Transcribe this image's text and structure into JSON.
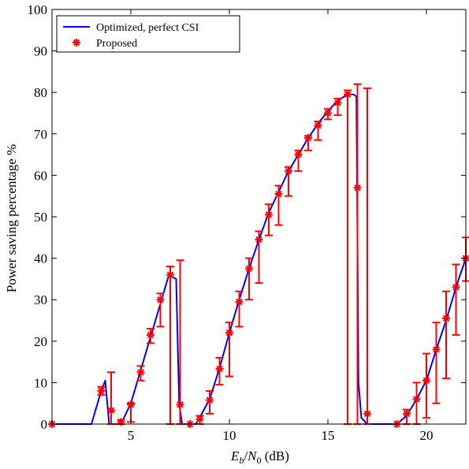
{
  "chart_data": {
    "type": "line",
    "xlabel": "E_b/N_0 (dB)",
    "xlabel_parts": {
      "e": "E",
      "b": "b",
      "slash": "/",
      "n": "N",
      "zero": "0",
      "unit": " (dB)"
    },
    "ylabel": "Power saving percentage %",
    "xlim": [
      1,
      22
    ],
    "ylim": [
      0,
      100
    ],
    "xticks": [
      5,
      10,
      15,
      20
    ],
    "yticks": [
      0,
      10,
      20,
      30,
      40,
      50,
      60,
      70,
      80,
      90,
      100
    ],
    "grid": false,
    "legend_position": "top-left",
    "colors": {
      "optimized": "#0000ff",
      "proposed": "#ff0000"
    },
    "series": [
      {
        "name": "Optimized, perfect CSI",
        "style": "line",
        "x": [
          1,
          3,
          3.5,
          3.7,
          3.9,
          4.5,
          5,
          5.5,
          6,
          6.5,
          6.9,
          7.1,
          7.3,
          7.45,
          7.6,
          8.3,
          8.6,
          9,
          9.5,
          10,
          10.5,
          11,
          11.5,
          12,
          12.5,
          13,
          13.5,
          14,
          14.5,
          15,
          15.5,
          16,
          16.3,
          16.45,
          16.55,
          16.7,
          17,
          18.5,
          19,
          19.5,
          20,
          20.5,
          21,
          21.5,
          22
        ],
        "y": [
          0,
          0,
          8,
          10.5,
          0,
          0,
          5,
          13,
          21,
          29,
          35.5,
          35.5,
          35,
          5,
          0,
          0,
          2.5,
          6,
          13.5,
          22,
          30,
          37.5,
          44.5,
          51,
          56,
          61,
          65,
          69,
          72.5,
          75.5,
          78,
          79.5,
          79.5,
          79,
          10,
          1.5,
          0,
          0,
          2,
          6,
          10.5,
          18,
          25,
          33,
          40
        ]
      },
      {
        "name": "Proposed",
        "style": "marker",
        "points": [
          {
            "x": 1,
            "y": 0
          },
          {
            "x": 3.5,
            "y": 8,
            "err": [
              7,
              9
            ]
          },
          {
            "x": 4,
            "y": 3.3,
            "err": [
              0,
              12.5
            ]
          },
          {
            "x": 4.5,
            "y": 0.5,
            "err": [
              0,
              1
            ]
          },
          {
            "x": 5,
            "y": 4.7,
            "err": [
              0.5,
              5
            ]
          },
          {
            "x": 5.5,
            "y": 12.5,
            "err": [
              10.5,
              14
            ]
          },
          {
            "x": 6,
            "y": 21.5,
            "err": [
              19.5,
              23
            ]
          },
          {
            "x": 6.5,
            "y": 30,
            "err": [
              23.5,
              31.5
            ]
          },
          {
            "x": 7,
            "y": 36,
            "err": [
              0,
              38
            ]
          },
          {
            "x": 7.5,
            "y": 4.7,
            "err": [
              0,
              39.5
            ]
          },
          {
            "x": 8,
            "y": 0
          },
          {
            "x": 8.5,
            "y": 1.2,
            "err": [
              0,
              2
            ]
          },
          {
            "x": 9,
            "y": 5.8,
            "err": [
              2.5,
              8
            ]
          },
          {
            "x": 9.5,
            "y": 13.3,
            "err": [
              9.5,
              16
            ]
          },
          {
            "x": 10,
            "y": 22,
            "err": [
              11.5,
              24.5
            ]
          },
          {
            "x": 10.5,
            "y": 29.5,
            "err": [
              23.5,
              32
            ]
          },
          {
            "x": 11,
            "y": 37.5,
            "err": [
              30,
              40
            ]
          },
          {
            "x": 11.5,
            "y": 44.5,
            "err": [
              34,
              46.5
            ]
          },
          {
            "x": 12,
            "y": 50.5,
            "err": [
              45.5,
              53
            ]
          },
          {
            "x": 12.5,
            "y": 55.5,
            "err": [
              48,
              57.5
            ]
          },
          {
            "x": 13,
            "y": 61,
            "err": [
              55,
              62
            ]
          },
          {
            "x": 13.5,
            "y": 65,
            "err": [
              61,
              66
            ]
          },
          {
            "x": 14,
            "y": 69,
            "err": [
              66,
              69.5
            ]
          },
          {
            "x": 14.5,
            "y": 72,
            "err": [
              68.5,
              73
            ]
          },
          {
            "x": 15,
            "y": 75,
            "err": [
              73.5,
              76
            ]
          },
          {
            "x": 15.5,
            "y": 77.5,
            "err": [
              74.5,
              78.5
            ]
          },
          {
            "x": 16,
            "y": 79.5,
            "err": [
              0,
              80.5
            ]
          },
          {
            "x": 16.5,
            "y": 57,
            "err": [
              0,
              82
            ]
          },
          {
            "x": 17,
            "y": 2.5,
            "err": [
              0,
              81
            ]
          },
          {
            "x": 18.5,
            "y": 0
          },
          {
            "x": 19,
            "y": 2.5,
            "err": [
              0,
              3.5
            ]
          },
          {
            "x": 19.5,
            "y": 6,
            "err": [
              0,
              10
            ]
          },
          {
            "x": 20,
            "y": 10.5,
            "err": [
              1.5,
              17
            ]
          },
          {
            "x": 20.5,
            "y": 18,
            "err": [
              5,
              24.5
            ]
          },
          {
            "x": 21,
            "y": 25.5,
            "err": [
              11,
              32
            ]
          },
          {
            "x": 21.5,
            "y": 33,
            "err": [
              21.5,
              38.5
            ]
          },
          {
            "x": 22,
            "y": 40,
            "err": [
              34.5,
              45
            ]
          }
        ]
      }
    ]
  }
}
